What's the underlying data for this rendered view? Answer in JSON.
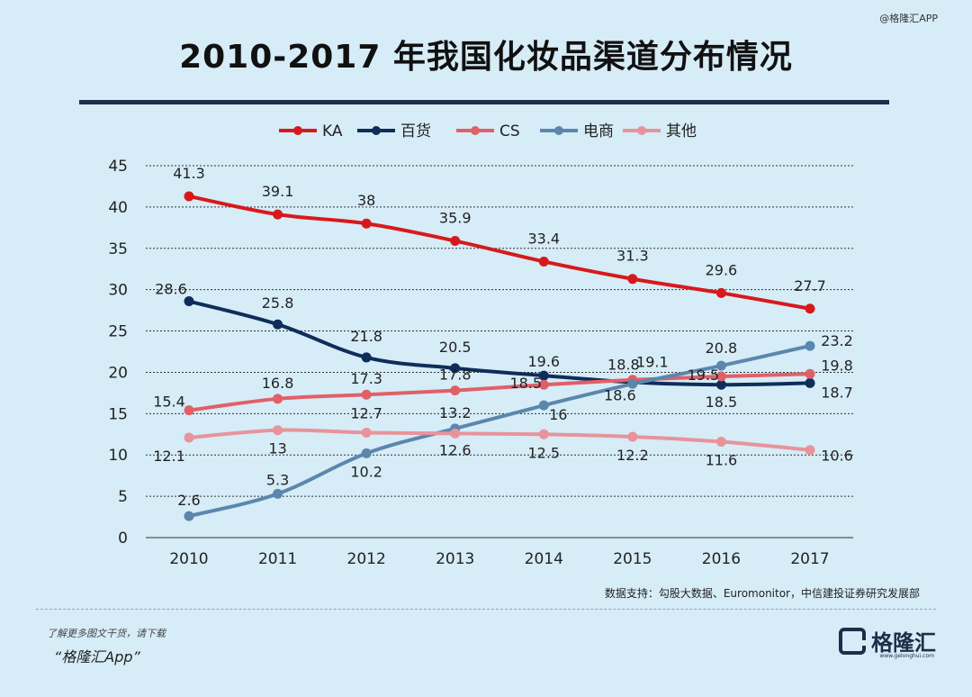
{
  "watermark_top": "@格隆汇APP",
  "title": "2010-2017 年我国化妆品渠道分布情况",
  "source": "数据支持：勾股大数据、Euromonitor，中信建投证券研究发展部",
  "footer": {
    "line1": "了解更多图文干货，请下载",
    "app": "“格隆汇App”",
    "logo_name": "格隆汇",
    "logo_url": "www.gelonghui.com"
  },
  "chart_data": {
    "type": "line",
    "title": "",
    "xlabel": "",
    "ylabel": "",
    "x": [
      "2010",
      "2011",
      "2012",
      "2013",
      "2014",
      "2015",
      "2016",
      "2017"
    ],
    "ylim": [
      0,
      45
    ],
    "yticks": [
      "0",
      "5",
      "10",
      "15",
      "20",
      "25",
      "30",
      "35",
      "40",
      "45"
    ],
    "grid": "horizontal dashed",
    "legend_position": "top",
    "series": [
      {
        "name": "KA",
        "color": "#d7191c",
        "values": [
          41.3,
          39.1,
          38,
          35.9,
          33.4,
          31.3,
          29.6,
          27.7
        ]
      },
      {
        "name": "百货",
        "color": "#0e2d5a",
        "values": [
          28.6,
          25.8,
          21.8,
          20.5,
          19.6,
          18.8,
          18.5,
          18.7
        ]
      },
      {
        "name": "CS",
        "color": "#e06068",
        "values": [
          15.4,
          16.8,
          17.3,
          17.8,
          18.5,
          19.1,
          19.5,
          19.8
        ]
      },
      {
        "name": "电商",
        "color": "#5b87ad",
        "values": [
          2.6,
          5.3,
          10.2,
          13.2,
          16,
          18.6,
          20.8,
          23.2
        ]
      },
      {
        "name": "其他",
        "color": "#e8939b",
        "values": [
          12.1,
          13,
          12.7,
          12.6,
          12.5,
          12.2,
          11.6,
          10.6
        ]
      }
    ]
  }
}
